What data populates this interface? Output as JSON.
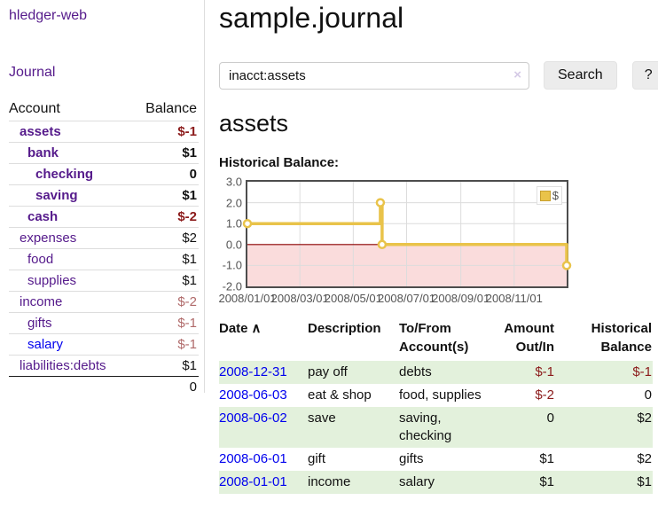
{
  "sidebar": {
    "brand": "hledger-web",
    "nav_journal": "Journal",
    "accounts_table": {
      "col_account": "Account",
      "col_balance": "Balance",
      "rows": [
        {
          "account": "assets",
          "balance": "$-1",
          "level": 0,
          "bold": true,
          "balance_style": "neg-strong",
          "link_color": "purple"
        },
        {
          "account": "bank",
          "balance": "$1",
          "level": 1,
          "bold": true,
          "balance_style": "normal",
          "link_color": "purple"
        },
        {
          "account": "checking",
          "balance": "0",
          "level": 2,
          "bold": true,
          "balance_style": "normal",
          "link_color": "purple"
        },
        {
          "account": "saving",
          "balance": "$1",
          "level": 2,
          "bold": true,
          "balance_style": "normal",
          "link_color": "purple"
        },
        {
          "account": "cash",
          "balance": "$-2",
          "level": 1,
          "bold": true,
          "balance_style": "neg-strong",
          "link_color": "purple"
        },
        {
          "account": "expenses",
          "balance": "$2",
          "level": 0,
          "bold": false,
          "balance_style": "normal",
          "link_color": "purple"
        },
        {
          "account": "food",
          "balance": "$1",
          "level": 1,
          "bold": false,
          "balance_style": "normal",
          "link_color": "purple"
        },
        {
          "account": "supplies",
          "balance": "$1",
          "level": 1,
          "bold": false,
          "balance_style": "normal",
          "link_color": "purple"
        },
        {
          "account": "income",
          "balance": "$-2",
          "level": 0,
          "bold": false,
          "balance_style": "neg-soft",
          "link_color": "purple"
        },
        {
          "account": "gifts",
          "balance": "$-1",
          "level": 1,
          "bold": false,
          "balance_style": "neg-soft",
          "link_color": "purple"
        },
        {
          "account": "salary",
          "balance": "$-1",
          "level": 1,
          "bold": false,
          "balance_style": "neg-soft",
          "link_color": "blue"
        },
        {
          "account": "liabilities:debts",
          "balance": "$1",
          "level": 0,
          "bold": false,
          "balance_style": "normal",
          "link_color": "purple"
        }
      ],
      "total": "0"
    }
  },
  "header": {
    "title": "sample.journal"
  },
  "search": {
    "value": "inacct:assets",
    "clear_label": "×",
    "search_button": "Search",
    "help_button": "?"
  },
  "account_page": {
    "heading": "assets",
    "chart_title": "Historical Balance:"
  },
  "chart_data": {
    "type": "line",
    "step": true,
    "title": "Historical Balance",
    "series": [
      {
        "name": "$",
        "color": "#e9c34a",
        "points": [
          [
            "2008-01-01",
            1.0
          ],
          [
            "2008-06-01",
            2.0
          ],
          [
            "2008-06-03",
            0.0
          ],
          [
            "2008-12-31",
            -1.0
          ]
        ]
      }
    ],
    "x_range": [
      "2008-01-01",
      "2008-12-31"
    ],
    "x_ticks": [
      "2008/01/01",
      "2008/03/01",
      "2008/05/01",
      "2008/07/01",
      "2008/09/01",
      "2008/11/01"
    ],
    "y_ticks": [
      "3.0",
      "2.0",
      "1.0",
      "0.0",
      "-1.0",
      "-2.0"
    ],
    "ylim": [
      -2,
      3
    ],
    "grid": true,
    "zero_line_color": "#8b0000",
    "negative_fill": "#fadcdc",
    "grid_color": "#dcdcdc",
    "legend": {
      "label": "$",
      "position": "top-right"
    }
  },
  "register": {
    "headers": {
      "date": "Date",
      "description": "Description",
      "accounts": "To/From Account(s)",
      "amount": "Amount Out/In",
      "balance": "Historical Balance"
    },
    "sort_icon": "∧",
    "rows": [
      {
        "date": "2008-12-31",
        "description": "pay off",
        "accounts": "debts",
        "amount": "$-1",
        "balance": "$-1",
        "amount_negative": true,
        "balance_negative": true,
        "striped": true
      },
      {
        "date": "2008-06-03",
        "description": "eat & shop",
        "accounts": "food, supplies",
        "amount": "$-2",
        "balance": "0",
        "amount_negative": true,
        "balance_negative": false,
        "striped": false
      },
      {
        "date": "2008-06-02",
        "description": "save",
        "accounts": "saving, checking",
        "amount": "0",
        "balance": "$2",
        "amount_negative": false,
        "balance_negative": false,
        "striped": true
      },
      {
        "date": "2008-06-01",
        "description": "gift",
        "accounts": "gifts",
        "amount": "$1",
        "balance": "$2",
        "amount_negative": false,
        "balance_negative": false,
        "striped": false
      },
      {
        "date": "2008-01-01",
        "description": "income",
        "accounts": "salary",
        "amount": "$1",
        "balance": "$1",
        "amount_negative": false,
        "balance_negative": false,
        "striped": true
      }
    ]
  },
  "colors": {
    "link_purple": "#551a8b",
    "link_blue": "#0000ee",
    "negative_strong": "#8b1a1a",
    "negative_soft": "#b06a6a",
    "row_stripe_green": "#e3f1dc",
    "chart_gold": "#e9c34a"
  }
}
